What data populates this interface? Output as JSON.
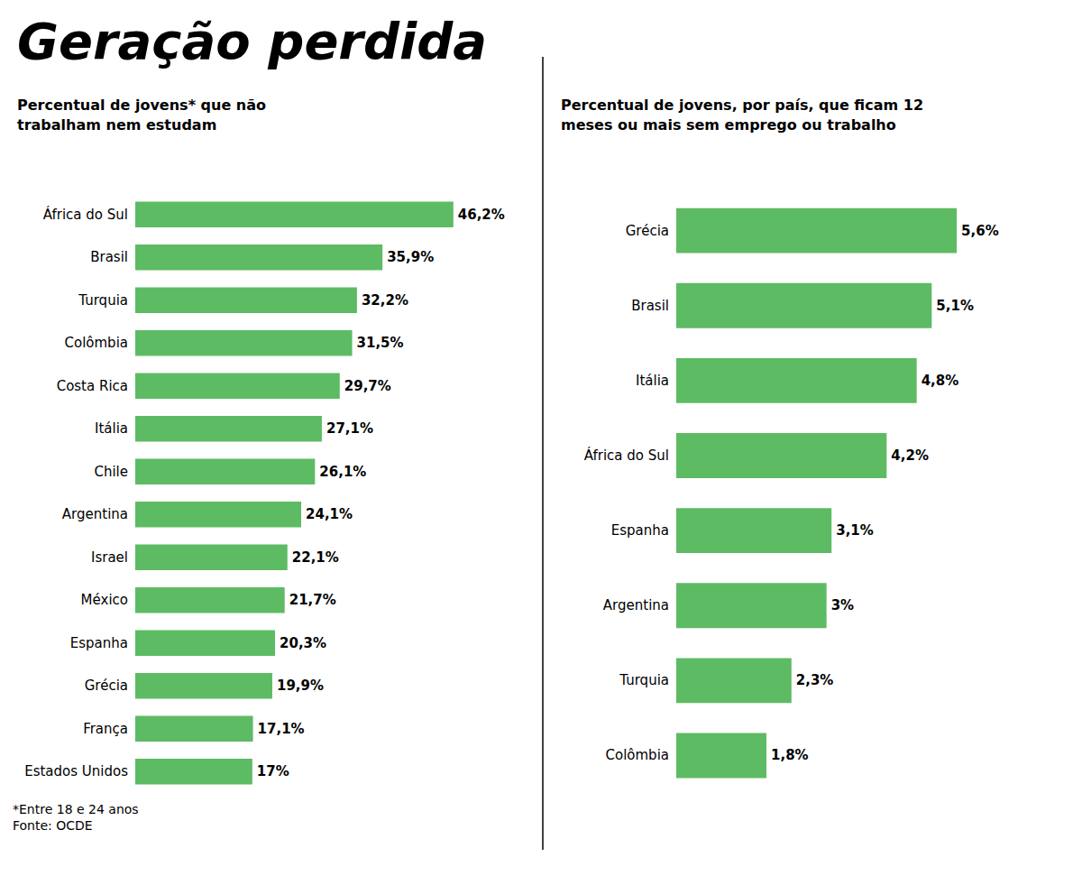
{
  "title": "Geração perdida",
  "chart_data": [
    {
      "type": "bar",
      "subtitle": "Percentual de jovens* que não\ntrabalham nem estudam",
      "categories": [
        "África do Sul",
        "Brasil",
        "Turquia",
        "Colômbia",
        "Costa Rica",
        "Itália",
        "Chile",
        "Argentina",
        "Israel",
        "México",
        "Espanha",
        "Grécia",
        "França",
        "Estados Unidos"
      ],
      "values": [
        46.2,
        35.9,
        32.2,
        31.5,
        29.7,
        27.1,
        26.1,
        24.1,
        22.1,
        21.7,
        20.3,
        19.9,
        17.1,
        17.0
      ],
      "value_labels": [
        "46,2%",
        "35,9%",
        "32,2%",
        "31,5%",
        "29,7%",
        "27,1%",
        "26,1%",
        "24,1%",
        "22,1%",
        "21,7%",
        "20,3%",
        "19,9%",
        "17,1%",
        "17%"
      ],
      "color": "#5dbb63",
      "orientation": "horizontal",
      "xlim": [
        0,
        55
      ],
      "data_labels": true,
      "tick_labels": "y",
      "grid": false,
      "annotations": [
        "*Entre 18 e 24 anos\nFonte: OCDE"
      ]
    },
    {
      "type": "bar",
      "subtitle": "Percentual de jovens, por país, que ficam 12\nmeses ou mais sem emprego ou trabalho",
      "categories": [
        "Grécia",
        "Brasil",
        "Itália",
        "África do Sul",
        "Espanha",
        "Argentina",
        "Turquia",
        "Colômbia"
      ],
      "values": [
        5.6,
        5.1,
        4.8,
        4.2,
        3.1,
        3.0,
        2.3,
        1.8
      ],
      "value_labels": [
        "5,6%",
        "5,1%",
        "4,8%",
        "4,2%",
        "3,1%",
        "3%",
        "2,3%",
        "1,8%"
      ],
      "color": "#5dbb63",
      "orientation": "horizontal",
      "xlim": [
        0,
        7.2
      ],
      "data_labels": true,
      "tick_labels": "y",
      "grid": false
    }
  ]
}
